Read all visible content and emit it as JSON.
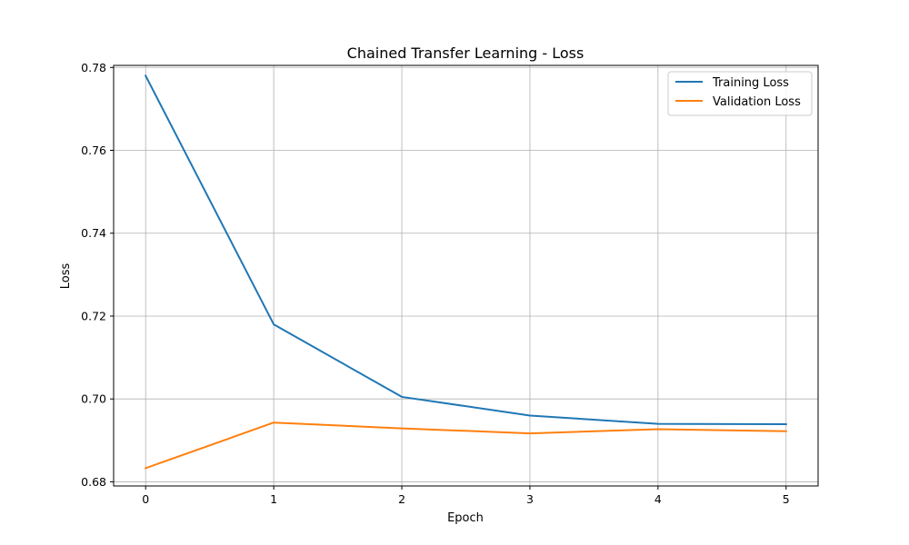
{
  "chart_data": {
    "type": "line",
    "title": "Chained Transfer Learning - Loss",
    "xlabel": "Epoch",
    "ylabel": "Loss",
    "x": [
      0,
      1,
      2,
      3,
      4,
      5
    ],
    "xlim": [
      -0.25,
      5.25
    ],
    "ylim": [
      0.679,
      0.7805
    ],
    "xticks": [
      0,
      1,
      2,
      3,
      4,
      5
    ],
    "yticks": [
      0.68,
      0.7,
      0.72,
      0.74,
      0.76,
      0.78
    ],
    "grid": true,
    "legend_position": "top-right",
    "series": [
      {
        "name": "Training Loss",
        "color": "#1f77b4",
        "values": [
          0.778,
          0.718,
          0.7005,
          0.696,
          0.694,
          0.6939
        ]
      },
      {
        "name": "Validation Loss",
        "color": "#ff7f0e",
        "values": [
          0.6833,
          0.6943,
          0.6929,
          0.6917,
          0.6927,
          0.6922
        ]
      }
    ]
  }
}
